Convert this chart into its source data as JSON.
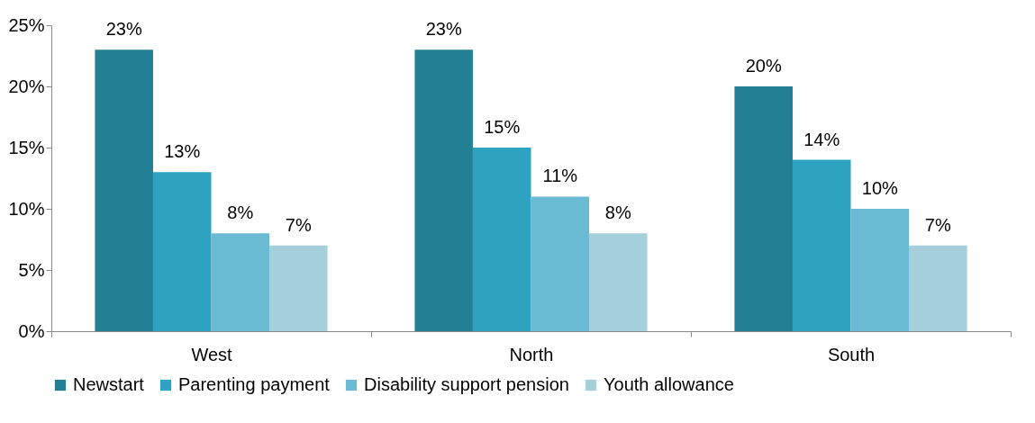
{
  "chart_data": {
    "type": "bar",
    "categories": [
      "West",
      "North",
      "South"
    ],
    "series": [
      {
        "name": "Newstart",
        "color": "#237f93",
        "values": [
          23,
          23,
          20
        ],
        "value_labels": [
          "23%",
          "23%",
          "20%"
        ]
      },
      {
        "name": "Parenting payment",
        "color": "#2ea3c1",
        "values": [
          13,
          15,
          14
        ],
        "value_labels": [
          "13%",
          "15%",
          "14%"
        ]
      },
      {
        "name": "Disability support pension",
        "color": "#6bbad4",
        "values": [
          8,
          11,
          10
        ],
        "value_labels": [
          "8%",
          "11%",
          "10%"
        ]
      },
      {
        "name": "Youth allowance",
        "color": "#a6cfdc",
        "values": [
          7,
          8,
          7
        ],
        "value_labels": [
          "7%",
          "8%",
          "7%"
        ]
      }
    ],
    "ylim": [
      0,
      25
    ],
    "yticks": [
      {
        "value": 0,
        "label": "0%"
      },
      {
        "value": 5,
        "label": "5%"
      },
      {
        "value": 10,
        "label": "10%"
      },
      {
        "value": 15,
        "label": "15%"
      },
      {
        "value": 20,
        "label": "20%"
      },
      {
        "value": 25,
        "label": "25%"
      }
    ],
    "grid": false,
    "legend": "bottom"
  }
}
